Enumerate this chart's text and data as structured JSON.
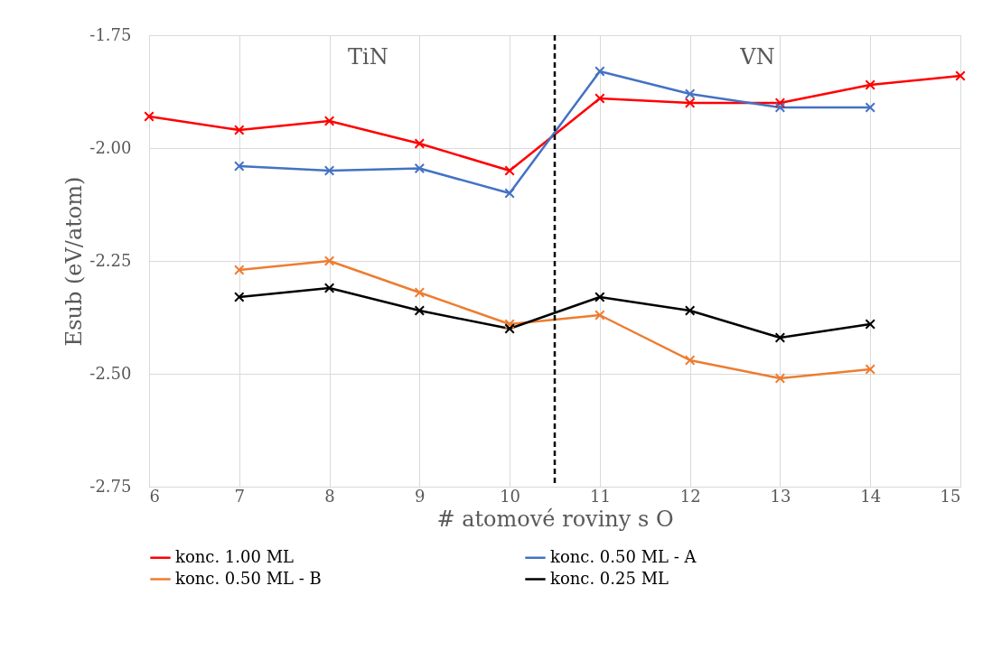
{
  "chart_data": {
    "type": "line",
    "xlabel": "# atomové roviny s O",
    "ylabel": "Esub (eV/atom)",
    "x": [
      6,
      7,
      8,
      9,
      10,
      11,
      12,
      13,
      14,
      15
    ],
    "series": [
      {
        "name": "konc. 1.00 ML",
        "color": "#ff0000",
        "values": [
          -1.93,
          -1.96,
          -1.94,
          -1.99,
          -2.05,
          -1.89,
          -1.9,
          -1.9,
          -1.86,
          -1.84
        ]
      },
      {
        "name": "konc. 0.50 ML - A",
        "color": "#4472c4",
        "values": [
          null,
          -2.04,
          -2.05,
          -2.045,
          -2.1,
          -1.83,
          -1.88,
          -1.91,
          -1.91,
          null
        ]
      },
      {
        "name": "konc. 0.50 ML - B",
        "color": "#ed7d31",
        "values": [
          null,
          -2.27,
          -2.25,
          -2.32,
          -2.39,
          -2.37,
          -2.47,
          -2.51,
          -2.49,
          null
        ]
      },
      {
        "name": "konc. 0.25 ML",
        "color": "#000000",
        "values": [
          null,
          -2.33,
          -2.31,
          -2.36,
          -2.4,
          -2.33,
          -2.36,
          -2.42,
          -2.39,
          null
        ]
      }
    ],
    "xlim": [
      6,
      15
    ],
    "xticks": [
      6,
      7,
      8,
      9,
      10,
      11,
      12,
      13,
      14,
      15
    ],
    "ylim": [
      -2.75,
      -1.75
    ],
    "yticks": [
      {
        "value": -2.75,
        "label": "-2.75"
      },
      {
        "value": -2.5,
        "label": "-2.50"
      },
      {
        "value": -2.25,
        "label": "-2.25"
      },
      {
        "value": -2.0,
        "label": "-2.00"
      },
      {
        "value": -1.75,
        "label": "-1.75"
      }
    ],
    "ref_lines": [
      {
        "axis": "x",
        "value": 10.5,
        "color": "#000000",
        "line_style": "dashed"
      }
    ],
    "annotations": [
      "TiN",
      "VN"
    ],
    "grid": true,
    "legend": "bottom",
    "marker": "cross",
    "line_style": "solid"
  }
}
